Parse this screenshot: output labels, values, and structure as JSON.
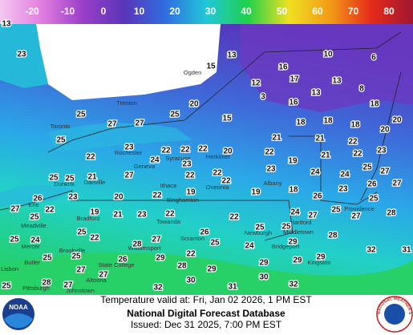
{
  "legend": {
    "ticks": [
      -20,
      -10,
      0,
      10,
      20,
      30,
      40,
      50,
      60,
      70,
      80
    ]
  },
  "map": {
    "temperatures": [
      13,
      23,
      15,
      13,
      16,
      10,
      6,
      12,
      17,
      13,
      8,
      3,
      13,
      16,
      18,
      20,
      15,
      18,
      18,
      18,
      20,
      25,
      27,
      27,
      25,
      25,
      21,
      21,
      22,
      20,
      23,
      22,
      22,
      22,
      20,
      22,
      21,
      22,
      23,
      22,
      24,
      23,
      22,
      23,
      19,
      24,
      24,
      25,
      27,
      25,
      25,
      21,
      27,
      22,
      22,
      18,
      23,
      26,
      27,
      23,
      20,
      22,
      19,
      19,
      26,
      26,
      27,
      22,
      19,
      21,
      23,
      22,
      22,
      24,
      27,
      25,
      27,
      28,
      25,
      25,
      24,
      25,
      22,
      25,
      25,
      28,
      26,
      27,
      28,
      24,
      29,
      25,
      25,
      25,
      26,
      29,
      22,
      28,
      29,
      25,
      27,
      29,
      29,
      32,
      31,
      29,
      30,
      28,
      27,
      27,
      25,
      32,
      30,
      31,
      32
    ],
    "places": [
      "Trenton",
      "Toronto",
      "Ogden",
      "Rochester",
      "Geneva",
      "Syracuse",
      "Herkimer",
      "Albany",
      "Dunkirk",
      "Danville",
      "Erie",
      "Bradford",
      "Ithaca",
      "Binghamton",
      "Oneonta",
      "Meadville",
      "Towanda",
      "Scranton",
      "Williamsport",
      "State College",
      "Altoona",
      "Johnstown",
      "Pittsburgh",
      "Butler",
      "Mercer",
      "Brookville",
      "Lisbon",
      "Newburgh",
      "Bridgeport",
      "Hartford",
      "Providence",
      "Middletown",
      "Kingston"
    ]
  },
  "footer": {
    "valid": "Temperature valid at: Fri, Jan 02 2026, 1 PM EST",
    "title": "National Digital Forecast Database",
    "issued": "Issued: Dec 31 2025, 7:00 PM EST"
  },
  "logos": {
    "left": "NOAA",
    "right": "NATIONAL WEATHER SERVICE"
  }
}
